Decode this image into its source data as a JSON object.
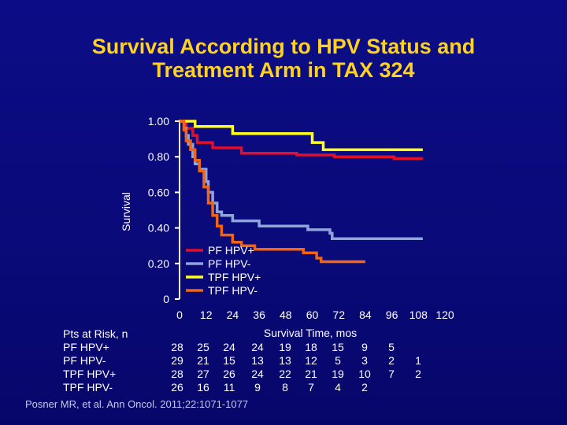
{
  "title": {
    "line1": "Survival According to HPV Status and",
    "line2": "Treatment Arm in TAX 324"
  },
  "chart_data": {
    "type": "line",
    "step": true,
    "ylabel": "Survival",
    "xlabel": "Survival Time, mos",
    "xlim": [
      0,
      120
    ],
    "ylim": [
      0,
      1
    ],
    "xticks": [
      0,
      12,
      24,
      36,
      48,
      60,
      72,
      84,
      96,
      108,
      120
    ],
    "yticks": [
      {
        "value": 0,
        "label": "0"
      },
      {
        "value": 0.2,
        "label": "0.20"
      },
      {
        "value": 0.4,
        "label": "0.40"
      },
      {
        "value": 0.6,
        "label": "0.60"
      },
      {
        "value": 0.8,
        "label": "0.80"
      },
      {
        "value": 1.0,
        "label": "1.00"
      }
    ],
    "legend_position": "bottom-center",
    "series": [
      {
        "name": "PF HPV+",
        "color": "#e0102a",
        "points": [
          [
            0,
            1.0
          ],
          [
            3,
            1.0
          ],
          [
            3,
            0.96
          ],
          [
            6,
            0.96
          ],
          [
            6,
            0.92
          ],
          [
            8,
            0.92
          ],
          [
            8,
            0.88
          ],
          [
            15,
            0.88
          ],
          [
            15,
            0.85
          ],
          [
            28,
            0.85
          ],
          [
            28,
            0.82
          ],
          [
            53,
            0.82
          ],
          [
            53,
            0.81
          ],
          [
            70,
            0.81
          ],
          [
            70,
            0.8
          ],
          [
            97,
            0.8
          ],
          [
            97,
            0.79
          ],
          [
            110,
            0.79
          ]
        ]
      },
      {
        "name": "PF HPV-",
        "color": "#8fa4dc",
        "points": [
          [
            0,
            1.0
          ],
          [
            2,
            1.0
          ],
          [
            2,
            0.96
          ],
          [
            3,
            0.96
          ],
          [
            3,
            0.92
          ],
          [
            4,
            0.92
          ],
          [
            4,
            0.87
          ],
          [
            6,
            0.87
          ],
          [
            6,
            0.8
          ],
          [
            7,
            0.8
          ],
          [
            7,
            0.76
          ],
          [
            9,
            0.76
          ],
          [
            9,
            0.73
          ],
          [
            12,
            0.73
          ],
          [
            12,
            0.66
          ],
          [
            13,
            0.66
          ],
          [
            13,
            0.6
          ],
          [
            15,
            0.6
          ],
          [
            15,
            0.54
          ],
          [
            17,
            0.54
          ],
          [
            17,
            0.49
          ],
          [
            19,
            0.49
          ],
          [
            19,
            0.47
          ],
          [
            24,
            0.47
          ],
          [
            24,
            0.44
          ],
          [
            36,
            0.44
          ],
          [
            36,
            0.41
          ],
          [
            58,
            0.41
          ],
          [
            58,
            0.39
          ],
          [
            68,
            0.39
          ],
          [
            68,
            0.37
          ],
          [
            69,
            0.37
          ],
          [
            69,
            0.34
          ],
          [
            110,
            0.34
          ]
        ]
      },
      {
        "name": "TPF HPV+",
        "color": "#ffff20",
        "points": [
          [
            0,
            1.0
          ],
          [
            7,
            1.0
          ],
          [
            7,
            0.97
          ],
          [
            24,
            0.97
          ],
          [
            24,
            0.93
          ],
          [
            60,
            0.93
          ],
          [
            60,
            0.88
          ],
          [
            65,
            0.88
          ],
          [
            65,
            0.84
          ],
          [
            110,
            0.84
          ]
        ]
      },
      {
        "name": "TPF HPV-",
        "color": "#f06414",
        "points": [
          [
            0,
            1.0
          ],
          [
            2,
            1.0
          ],
          [
            2,
            0.95
          ],
          [
            3,
            0.95
          ],
          [
            3,
            0.89
          ],
          [
            5,
            0.89
          ],
          [
            5,
            0.84
          ],
          [
            7,
            0.84
          ],
          [
            7,
            0.78
          ],
          [
            9,
            0.78
          ],
          [
            9,
            0.72
          ],
          [
            11,
            0.72
          ],
          [
            11,
            0.63
          ],
          [
            13,
            0.63
          ],
          [
            13,
            0.54
          ],
          [
            15,
            0.54
          ],
          [
            15,
            0.47
          ],
          [
            17,
            0.47
          ],
          [
            17,
            0.41
          ],
          [
            19,
            0.41
          ],
          [
            19,
            0.36
          ],
          [
            24,
            0.36
          ],
          [
            24,
            0.32
          ],
          [
            28,
            0.32
          ],
          [
            28,
            0.3
          ],
          [
            34,
            0.3
          ],
          [
            34,
            0.28
          ],
          [
            56,
            0.28
          ],
          [
            56,
            0.26
          ],
          [
            62,
            0.26
          ],
          [
            62,
            0.23
          ],
          [
            64,
            0.23
          ],
          [
            64,
            0.21
          ],
          [
            84,
            0.21
          ]
        ]
      }
    ]
  },
  "risk_table": {
    "title": "Pts at Risk, n",
    "rows": [
      {
        "label": "PF HPV+",
        "values": [
          "28",
          "25",
          "24",
          "24",
          "19",
          "18",
          "15",
          "9",
          "5",
          ""
        ]
      },
      {
        "label": "PF HPV-",
        "values": [
          "29",
          "21",
          "15",
          "13",
          "13",
          "12",
          "5",
          "3",
          "2",
          "1"
        ]
      },
      {
        "label": "TPF HPV+",
        "values": [
          "28",
          "27",
          "26",
          "24",
          "22",
          "21",
          "19",
          "10",
          "7",
          "2"
        ]
      },
      {
        "label": "TPF HPV-",
        "values": [
          "26",
          "16",
          "11",
          "9",
          "8",
          "7",
          "4",
          "2",
          "",
          ""
        ]
      }
    ]
  },
  "citation": "Posner MR, et al. Ann Oncol. 2011;22:1071-1077"
}
